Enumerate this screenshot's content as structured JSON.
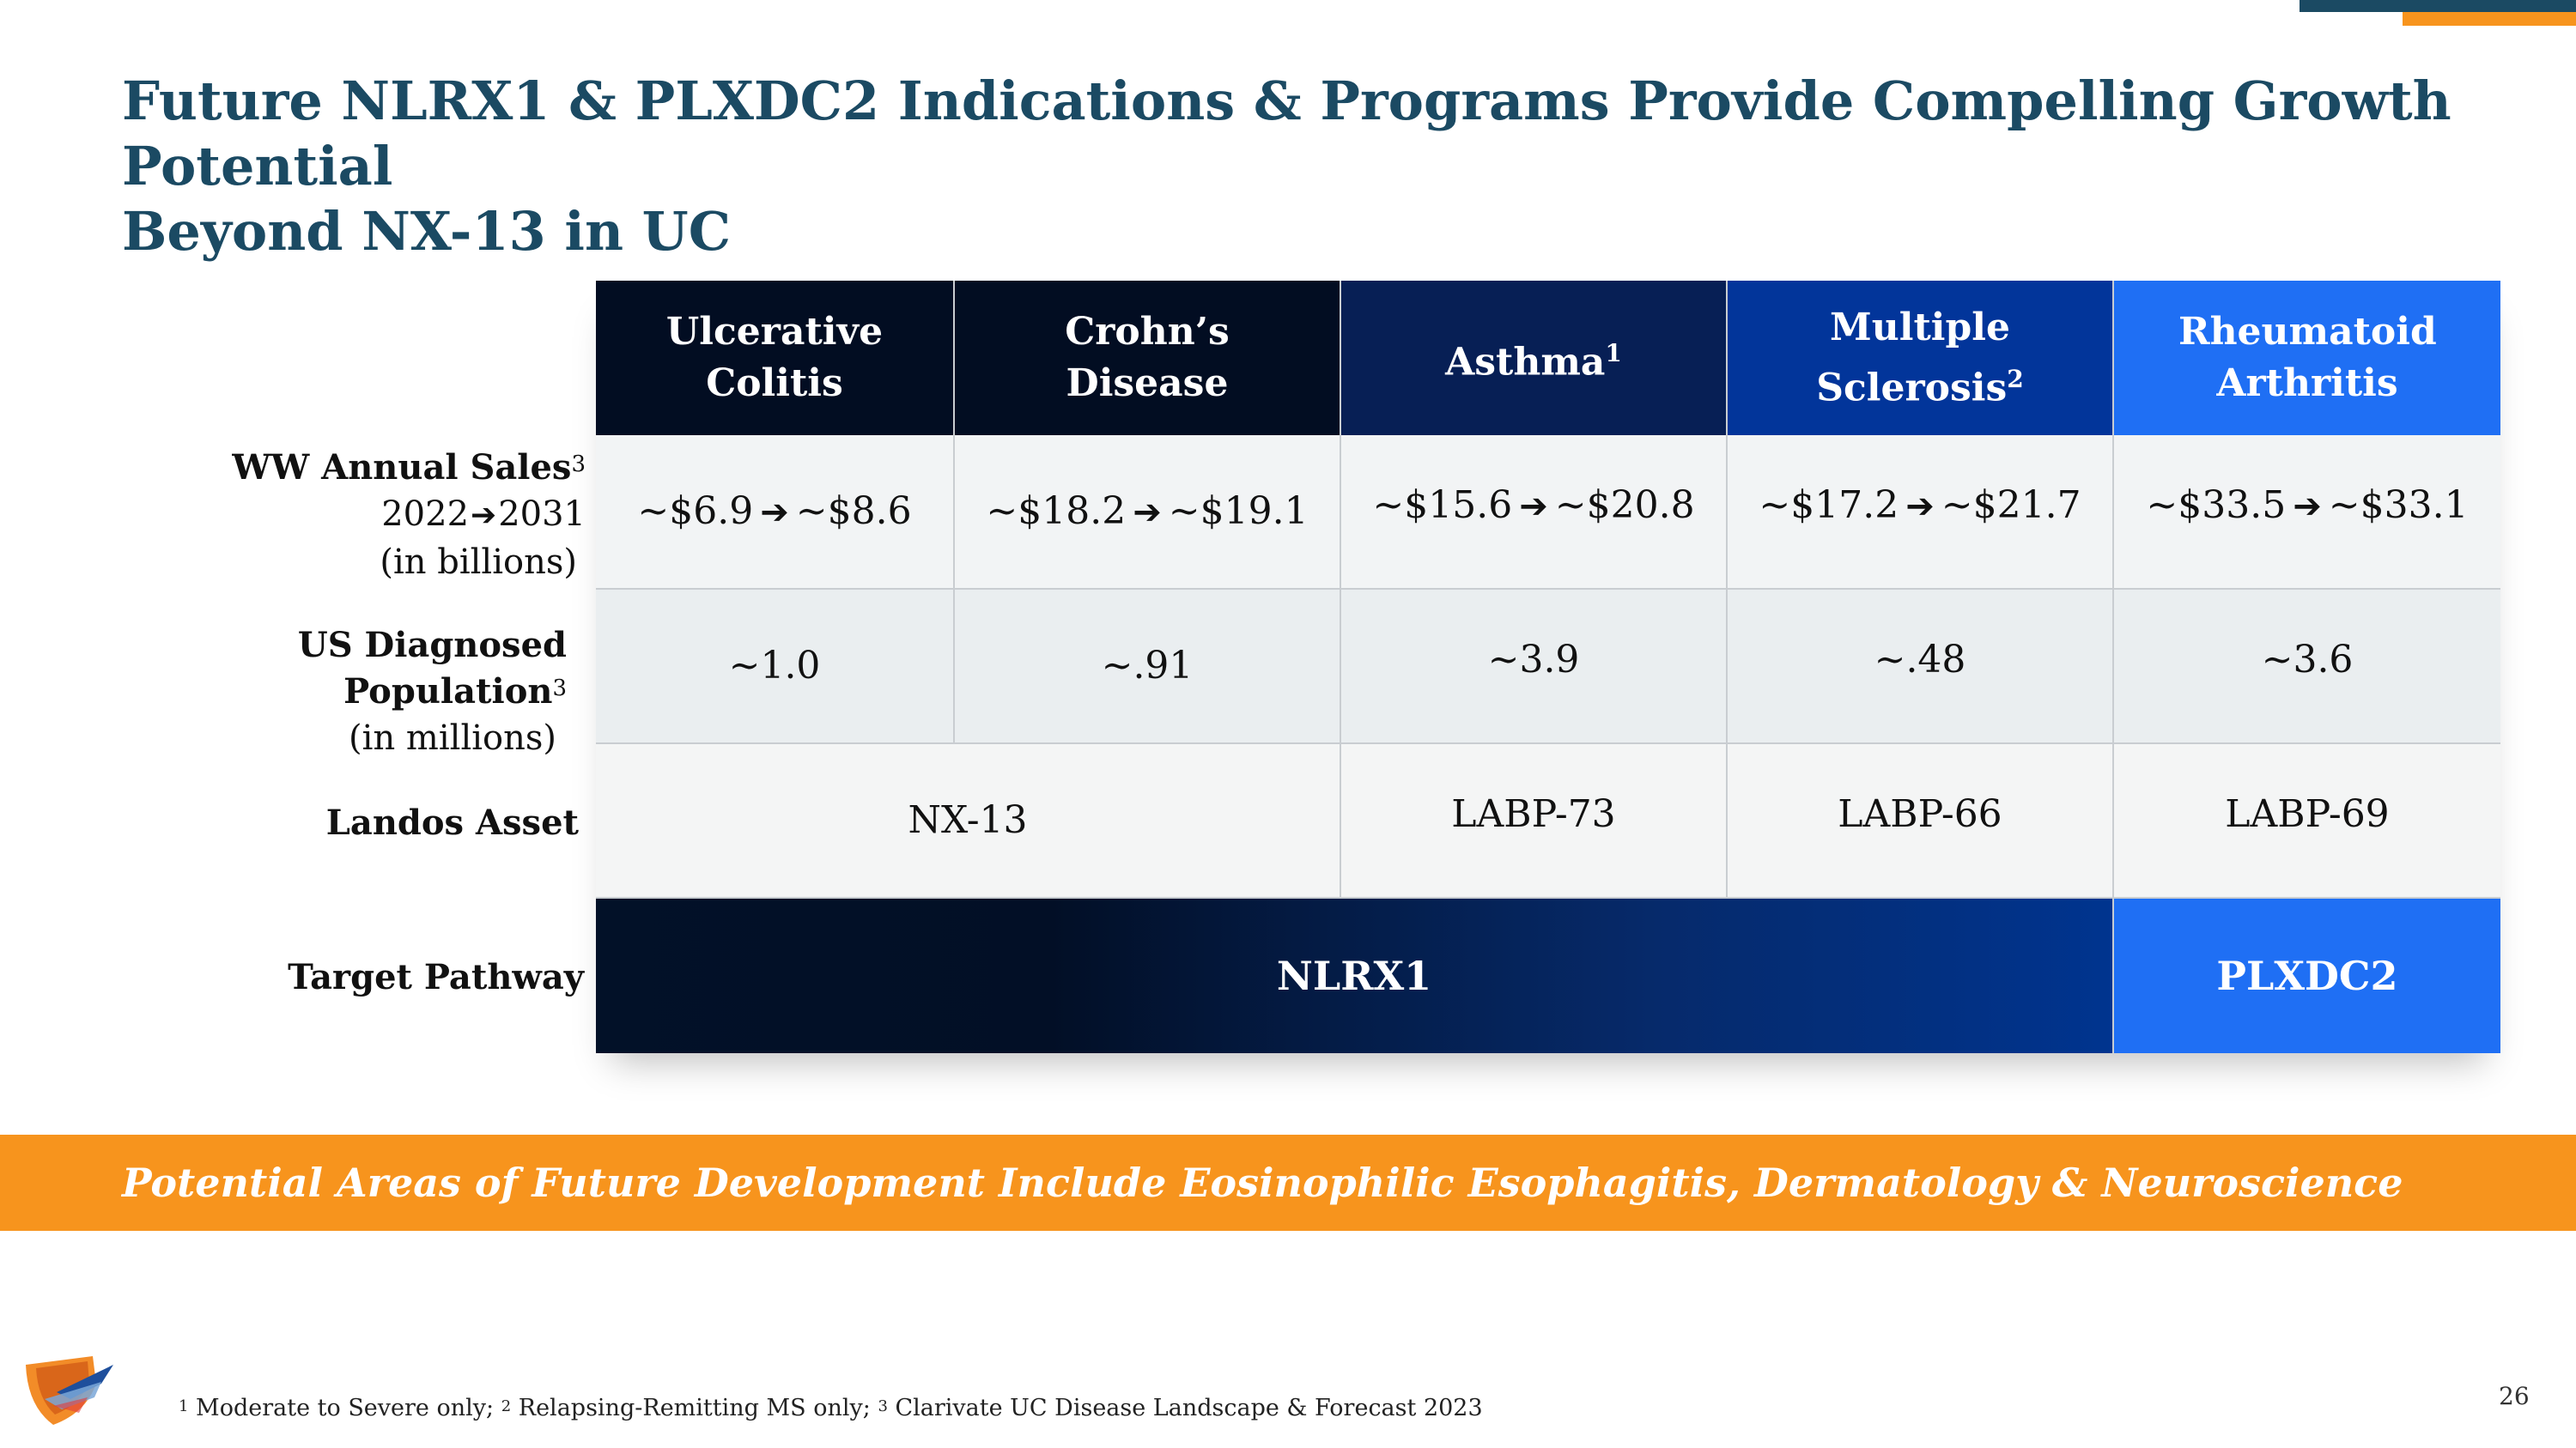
{
  "title": {
    "line1": "Future NLRX1 & PLXDC2 Indications & Programs Provide Compelling Growth Potential",
    "line2": "Beyond NX-13 in UC"
  },
  "columns": [
    {
      "label": "Ulcerative Colitis",
      "sup": ""
    },
    {
      "label": "Crohn’s Disease",
      "sup": ""
    },
    {
      "label": "Asthma",
      "sup": "1"
    },
    {
      "label": "Multiple Sclerosis",
      "sup": "2"
    },
    {
      "label": "Rheumatoid Arthritis",
      "sup": ""
    }
  ],
  "header_colors": [
    "#020d22",
    "#020d22",
    "#071f55",
    "#02359a",
    "#1f6ff4"
  ],
  "row_labels": {
    "sales": {
      "title": "WW Annual Sales",
      "sup": "3",
      "years": "2022",
      "years_end": "2031",
      "unit": "(in billions)"
    },
    "population": {
      "title": "US Diagnosed Population",
      "sup": "3",
      "unit": "(in millions)"
    },
    "asset": {
      "title": "Landos Asset"
    },
    "pathway": {
      "title": "Target Pathway"
    }
  },
  "sales": [
    {
      "from": "~$6.9",
      "to": "~$8.6"
    },
    {
      "from": "~$18.2",
      "to": "~$19.1"
    },
    {
      "from": "~$15.6",
      "to": "~$20.8"
    },
    {
      "from": "~$17.2",
      "to": "~$21.7"
    },
    {
      "from": "~$33.5",
      "to": "~$33.1"
    }
  ],
  "population": [
    "~1.0",
    "~.91",
    "~3.9",
    "~.48",
    "~3.6"
  ],
  "assets": {
    "nx13": "NX-13",
    "labp73": "LABP-73",
    "labp66": "LABP-66",
    "labp69": "LABP-69"
  },
  "pathways": {
    "nlrx1": "NLRX1",
    "plxdc2": "PLXDC2"
  },
  "banner": "Potential Areas of Future Development Include Eosinophilic Esophagitis, Dermatology & Neuroscience",
  "footnotes": [
    {
      "num": "1",
      "text": "Moderate to Severe only; "
    },
    {
      "num": "2",
      "text": "Relapsing-Remitting MS only; "
    },
    {
      "num": "3",
      "text": "Clarivate UC Disease Landscape & Forecast 2023"
    }
  ],
  "page_number": "26"
}
